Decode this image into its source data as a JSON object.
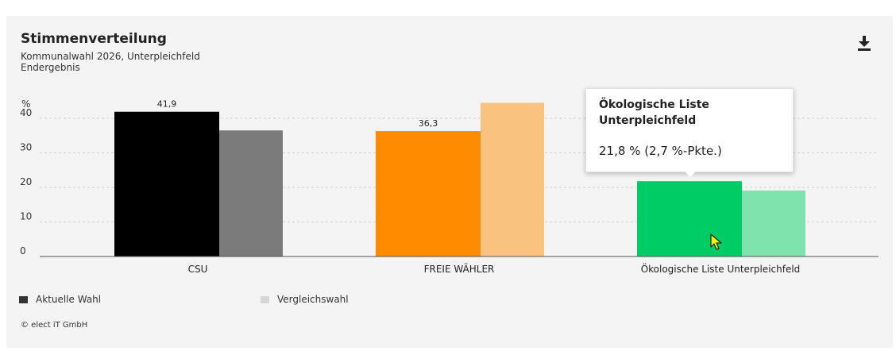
{
  "header": {
    "title": "Stimmenverteilung",
    "subtitle_line1": "Kommunalwahl 2026, Unterpleichfeld",
    "subtitle_line2": "Endergebnis"
  },
  "icons": {
    "download": "download-icon",
    "cursor": "mouse-pointer-icon"
  },
  "chart_data": {
    "type": "bar",
    "ylabel": "%",
    "ylim": [
      0,
      40
    ],
    "yticks": [
      0,
      10,
      20,
      30,
      40
    ],
    "grid": true,
    "categories": [
      "CSU",
      "FREIE WÄHLER",
      "Ökologische Liste Unterpleichfeld"
    ],
    "series": [
      {
        "name": "Aktuelle Wahl",
        "values": [
          41.9,
          36.3,
          21.8
        ],
        "labels": [
          "41,9",
          "36,3",
          ""
        ],
        "colors": [
          "#000000",
          "#ff8b00",
          "#00cc66"
        ]
      },
      {
        "name": "Vergleichswahl",
        "values": [
          36.5,
          44.5,
          19.1
        ],
        "colors": [
          "#7b7b7b",
          "#f9c27e",
          "#7ee3ad"
        ]
      }
    ],
    "legend_position": "bottom-left"
  },
  "legend": [
    {
      "label": "Aktuelle Wahl",
      "color": "#333333"
    },
    {
      "label": "Vergleichswahl",
      "color": "#d6d6d6"
    }
  ],
  "tooltip": {
    "title": "Ökologische Liste Unterpleichfeld",
    "value": "21,8 % (2,7 %-Pkte.)"
  },
  "footer": {
    "copyright": "© elect iT GmbH"
  }
}
